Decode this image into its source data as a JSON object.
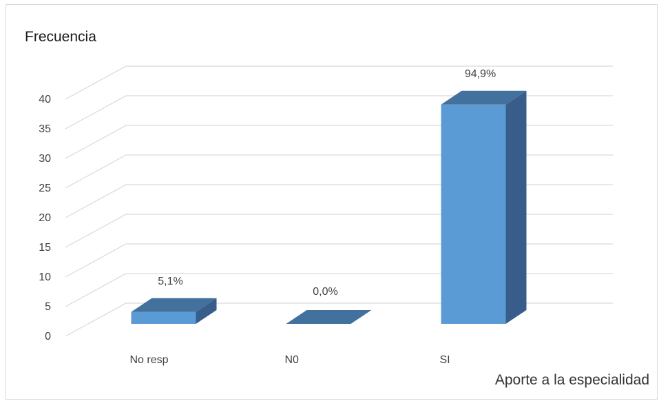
{
  "chart_data": {
    "type": "bar",
    "style": "3d-column",
    "ylabel": "Frecuencia",
    "xlabel": "Aporte a la especialidad",
    "categories": [
      "No resp",
      "N0",
      "SI"
    ],
    "values": [
      2,
      0,
      37
    ],
    "data_labels": [
      "5,1%",
      "0,0%",
      "94,9%"
    ],
    "ylim": [
      0,
      40
    ],
    "yticks": [
      "0",
      "5",
      "10",
      "15",
      "20",
      "25",
      "30",
      "35",
      "40"
    ],
    "grid": true,
    "legend": "none",
    "colors": {
      "front": "#5b9bd5",
      "top": "#41719c",
      "side": "#385d8a",
      "grid": "#d9d9d9"
    }
  }
}
